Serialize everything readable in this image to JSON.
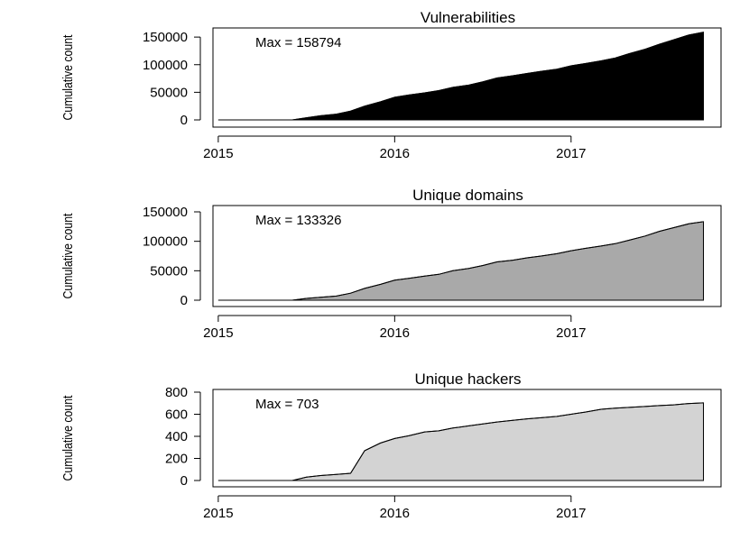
{
  "chart_data": [
    {
      "type": "area",
      "title": "Vulnerabilities",
      "ylabel": "Cumulative count",
      "xlabel": "",
      "annotation": "Max = 158794",
      "fill_color": "#000000",
      "xlim": [
        2014.97,
        2017.85
      ],
      "ylim": [
        0,
        160000
      ],
      "x_ticks": [
        2015,
        2016,
        2017
      ],
      "x_tick_labels": [
        "2015",
        "2016",
        "2017"
      ],
      "y_ticks": [
        0,
        50000,
        100000,
        150000
      ],
      "y_tick_labels": [
        "0",
        "50000",
        "100000",
        "150000"
      ],
      "x": [
        2015.0,
        2015.42,
        2015.5,
        2015.58,
        2015.67,
        2015.75,
        2015.83,
        2015.92,
        2016.0,
        2016.08,
        2016.17,
        2016.25,
        2016.33,
        2016.42,
        2016.5,
        2016.58,
        2016.67,
        2016.75,
        2016.83,
        2016.92,
        2017.0,
        2017.08,
        2017.17,
        2017.25,
        2017.33,
        2017.42,
        2017.5,
        2017.58,
        2017.67,
        2017.75
      ],
      "y": [
        0,
        0,
        4000,
        7500,
        10500,
        16000,
        25000,
        33000,
        41000,
        45000,
        49000,
        53000,
        59000,
        63000,
        69000,
        76000,
        80000,
        84000,
        88000,
        92000,
        98000,
        102000,
        107000,
        112000,
        120000,
        128000,
        137000,
        145000,
        154000,
        158794
      ]
    },
    {
      "type": "area",
      "title": "Unique domains",
      "ylabel": "Cumulative count",
      "xlabel": "",
      "annotation": "Max = 133326",
      "fill_color": "#a9a9a9",
      "xlim": [
        2014.97,
        2017.85
      ],
      "ylim": [
        0,
        150000
      ],
      "x_ticks": [
        2015,
        2016,
        2017
      ],
      "x_tick_labels": [
        "2015",
        "2016",
        "2017"
      ],
      "y_ticks": [
        0,
        50000,
        100000,
        150000
      ],
      "y_tick_labels": [
        "0",
        "50000",
        "100000",
        "150000"
      ],
      "x": [
        2015.0,
        2015.42,
        2015.5,
        2015.58,
        2015.67,
        2015.75,
        2015.83,
        2015.92,
        2016.0,
        2016.08,
        2016.17,
        2016.25,
        2016.33,
        2016.42,
        2016.5,
        2016.58,
        2016.67,
        2016.75,
        2016.83,
        2016.92,
        2017.0,
        2017.08,
        2017.17,
        2017.25,
        2017.33,
        2017.42,
        2017.5,
        2017.58,
        2017.67,
        2017.75
      ],
      "y": [
        0,
        0,
        3000,
        5000,
        7000,
        12000,
        20000,
        27000,
        34000,
        37000,
        41000,
        44000,
        50000,
        54000,
        59000,
        65000,
        68000,
        72000,
        75000,
        79000,
        84000,
        88000,
        92000,
        96000,
        102000,
        109000,
        117000,
        123000,
        130000,
        133326
      ]
    },
    {
      "type": "area",
      "title": "Unique hackers",
      "ylabel": "Cumulative count",
      "xlabel": "",
      "annotation": "Max = 703",
      "fill_color": "#d3d3d3",
      "xlim": [
        2014.97,
        2017.85
      ],
      "ylim": [
        0,
        800
      ],
      "x_ticks": [
        2015,
        2016,
        2017
      ],
      "x_tick_labels": [
        "2015",
        "2016",
        "2017"
      ],
      "y_ticks": [
        0,
        200,
        400,
        600,
        800
      ],
      "y_tick_labels": [
        "0",
        "200",
        "400",
        "600",
        "800"
      ],
      "x": [
        2015.0,
        2015.42,
        2015.5,
        2015.58,
        2015.67,
        2015.75,
        2015.83,
        2015.92,
        2016.0,
        2016.08,
        2016.17,
        2016.25,
        2016.33,
        2016.42,
        2016.5,
        2016.58,
        2016.67,
        2016.75,
        2016.83,
        2016.92,
        2017.0,
        2017.08,
        2017.17,
        2017.25,
        2017.33,
        2017.42,
        2017.5,
        2017.58,
        2017.67,
        2017.75
      ],
      "y": [
        0,
        0,
        30,
        45,
        55,
        65,
        270,
        340,
        380,
        405,
        440,
        450,
        475,
        495,
        512,
        530,
        545,
        558,
        568,
        580,
        600,
        620,
        645,
        655,
        662,
        670,
        678,
        685,
        697,
        703
      ]
    }
  ]
}
